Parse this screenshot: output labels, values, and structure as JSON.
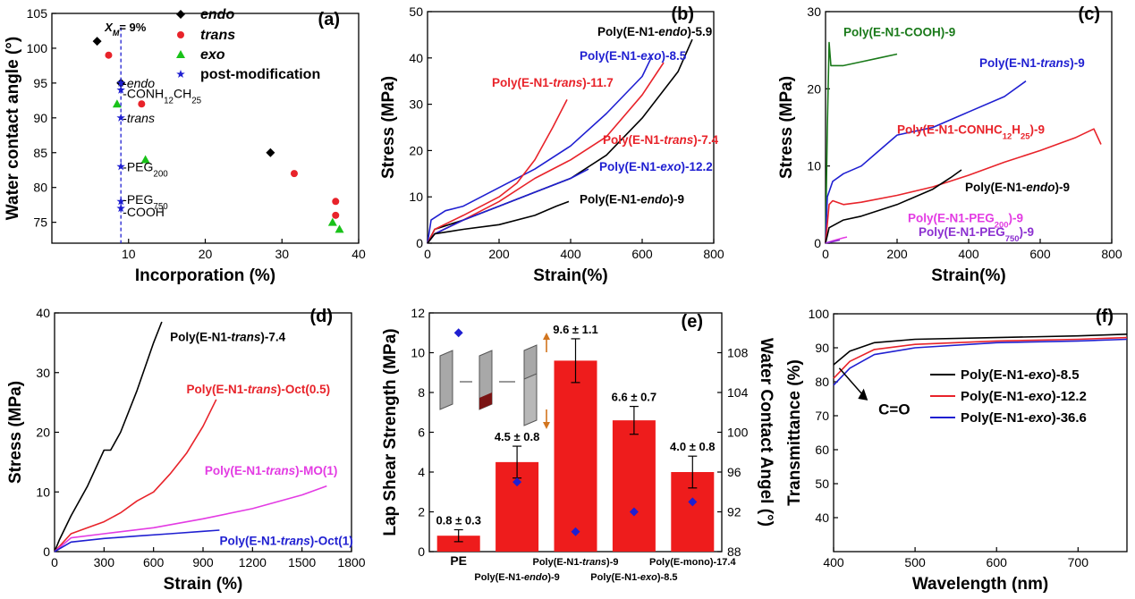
{
  "chart_data": [
    {
      "panel": "(a)",
      "type": "scatter",
      "xlabel": "Incorporation (%)",
      "ylabel": "Water contact angle (°)",
      "xlim": [
        0,
        40
      ],
      "ylim": [
        72,
        105
      ],
      "xticks": [
        10,
        20,
        30,
        40
      ],
      "yticks": [
        75,
        80,
        85,
        90,
        95,
        100,
        105
      ],
      "legend": [
        "endo",
        "trans",
        "exo",
        "post-modification"
      ],
      "series": [
        {
          "name": "endo",
          "marker": "diamond",
          "color": "#000000",
          "points": [
            [
              5.9,
              101
            ],
            [
              28.5,
              85
            ],
            [
              9.0,
              95
            ]
          ]
        },
        {
          "name": "trans",
          "marker": "circle",
          "color": "#e8232a",
          "points": [
            [
              7.4,
              99
            ],
            [
              11.7,
              92
            ],
            [
              31.6,
              82
            ],
            [
              37.0,
              78
            ],
            [
              37.0,
              76
            ]
          ]
        },
        {
          "name": "exo",
          "marker": "triangle",
          "color": "#19c219",
          "points": [
            [
              8.5,
              92
            ],
            [
              12.2,
              84
            ],
            [
              36.6,
              75
            ],
            [
              37.5,
              74
            ]
          ]
        },
        {
          "name": "post-modification",
          "marker": "star",
          "color": "#1f1fd1",
          "points": [
            [
              9,
              95
            ],
            [
              9,
              94
            ],
            [
              9,
              90
            ],
            [
              9,
              83
            ],
            [
              9,
              78
            ],
            [
              9,
              77
            ]
          ]
        }
      ],
      "vline": {
        "x": 9,
        "label_prefix": "X",
        "label_sub": "M",
        "label_suffix": "= 9%"
      },
      "annotations": [
        {
          "text": "-endo",
          "x": 9,
          "y": 95,
          "italic": true
        },
        {
          "text": "-CONH",
          "sub": "12",
          "text2": "CH",
          "sub2": "25",
          "x": 9,
          "y": 93.5
        },
        {
          "text": "-trans",
          "x": 9,
          "y": 90,
          "italic": true
        },
        {
          "text": "-PEG",
          "sub": "200",
          "x": 9,
          "y": 83
        },
        {
          "text": "-PEG",
          "sub": "750",
          "x": 9,
          "y": 78.3
        },
        {
          "text": "-COOH",
          "x": 9,
          "y": 76.5
        }
      ]
    },
    {
      "panel": "(b)",
      "type": "line",
      "xlabel": "Strain(%)",
      "ylabel": "Stress (MPa)",
      "xlim": [
        0,
        800
      ],
      "ylim": [
        0,
        50
      ],
      "xticks": [
        0,
        200,
        400,
        600,
        800
      ],
      "yticks": [
        0,
        10,
        20,
        30,
        40,
        50
      ],
      "series": [
        {
          "name": "Poly(E-N1-endo)-5.9",
          "color": "#000000",
          "x": [
            0,
            20,
            100,
            200,
            300,
            400,
            500,
            600,
            700,
            740
          ],
          "y": [
            0,
            3,
            5,
            8,
            11,
            14,
            19,
            27,
            37,
            44
          ]
        },
        {
          "name": "Poly(E-N1-exo)-8.5",
          "color": "#1f1fd1",
          "x": [
            0,
            10,
            50,
            100,
            200,
            300,
            400,
            500,
            600,
            625
          ],
          "y": [
            0,
            5,
            7,
            8,
            12,
            16,
            21,
            28,
            36,
            40
          ]
        },
        {
          "name": "Poly(E-N1-trans)-11.7",
          "color": "#e8232a",
          "x": [
            0,
            20,
            100,
            200,
            250,
            300,
            350,
            390
          ],
          "y": [
            0,
            3,
            6,
            10,
            13,
            18,
            25,
            31
          ]
        },
        {
          "name": "Poly(E-N1-trans)-7.4",
          "color": "#e8232a",
          "x": [
            0,
            20,
            100,
            200,
            300,
            400,
            500,
            600,
            660
          ],
          "y": [
            0,
            2,
            5,
            9,
            14,
            18,
            23,
            32,
            39
          ]
        },
        {
          "name": "Poly(E-N1-exo)-12.2",
          "color": "#1f1fd1",
          "x": [
            0,
            20,
            100,
            200,
            300,
            400,
            450
          ],
          "y": [
            0,
            2,
            5,
            8,
            11,
            14,
            16
          ]
        },
        {
          "name": "Poly(E-N1-endo)-9",
          "color": "#000000",
          "x": [
            0,
            20,
            100,
            200,
            300,
            360,
            395
          ],
          "y": [
            0,
            2,
            3,
            4,
            6,
            8,
            9
          ]
        }
      ],
      "labels": [
        {
          "pre": "Poly(E-N1-",
          "it": "endo",
          "post": ")-5.9",
          "color": "#000000",
          "x": 475,
          "y": 44.8
        },
        {
          "pre": "Poly(E-N1-",
          "it": "exo",
          "post": ")-8.5",
          "color": "#1f1fd1",
          "x": 425,
          "y": 39.6
        },
        {
          "pre": "Poly(E-N1-",
          "it": "trans",
          "post": ")-11.7",
          "color": "#e8232a",
          "x": 180,
          "y": 33.8
        },
        {
          "pre": "Poly(E-N1-",
          "it": "trans",
          "post": ")-7.4",
          "color": "#e8232a",
          "x": 490,
          "y": 21.4
        },
        {
          "pre": "Poly(E-N1-",
          "it": "exo",
          "post": ")-12.2",
          "color": "#1f1fd1",
          "x": 480,
          "y": 15.6
        },
        {
          "pre": "Poly(E-N1-",
          "it": "endo",
          "post": ")-9",
          "color": "#000000",
          "x": 425,
          "y": 8.6
        }
      ]
    },
    {
      "panel": "(c)",
      "type": "line",
      "xlabel": "Strain(%)",
      "ylabel": "Stress (MPa)",
      "xlim": [
        0,
        800
      ],
      "ylim": [
        0,
        30
      ],
      "xticks": [
        0,
        200,
        400,
        600,
        800
      ],
      "yticks": [
        0,
        10,
        20,
        30
      ],
      "series": [
        {
          "name": "Poly(E-N1-COOH)-9",
          "color": "#1a7a1a",
          "x": [
            0,
            5,
            10,
            15,
            20,
            50,
            100,
            150,
            200
          ],
          "y": [
            0,
            15,
            26,
            23,
            23,
            23,
            23.5,
            24,
            24.5
          ]
        },
        {
          "name": "Poly(E-N1-trans)-9",
          "color": "#1f1fd1",
          "x": [
            0,
            5,
            20,
            50,
            100,
            150,
            200,
            300,
            400,
            500,
            560
          ],
          "y": [
            0,
            6,
            8,
            9,
            10,
            12,
            14,
            15,
            17,
            19,
            21
          ]
        },
        {
          "name": "Poly(E-N1-CONHC12H25)-9",
          "color": "#e8232a",
          "x": [
            0,
            10,
            20,
            50,
            100,
            200,
            300,
            400,
            500,
            600,
            700,
            750,
            770
          ],
          "y": [
            0,
            5,
            5.5,
            5,
            5.3,
            6.2,
            7.3,
            8.8,
            10.5,
            12,
            13.7,
            14.8,
            12.8
          ]
        },
        {
          "name": "Poly(E-N1-endo)-9",
          "color": "#000000",
          "x": [
            0,
            10,
            50,
            100,
            200,
            300,
            350,
            380
          ],
          "y": [
            0,
            2,
            3,
            3.5,
            5,
            7,
            8.5,
            9.5
          ]
        },
        {
          "name": "Poly(E-N1-PEG200)-9",
          "color": "#e33be3",
          "x": [
            0,
            20,
            50,
            60
          ],
          "y": [
            0,
            0.3,
            0.7,
            0.8
          ]
        },
        {
          "name": "Poly(E-N1-PEG750)-9",
          "color": "#8b2fd0",
          "x": [
            0,
            20,
            40
          ],
          "y": [
            0,
            0.2,
            0.4
          ]
        }
      ],
      "labels": [
        {
          "pre": "Poly(E-N1-COOH)-9",
          "color": "#1a7a1a",
          "x": 50,
          "y": 26.8
        },
        {
          "pre": "Poly(E-N1-",
          "it": "trans",
          "post": ")-9",
          "color": "#1f1fd1",
          "x": 430,
          "y": 22.8
        },
        {
          "pre": "Poly(E-N1-CONHC",
          "sub": "12",
          "post": "H",
          "sub2": "25",
          "post2": ")-9",
          "color": "#e8232a",
          "x": 200,
          "y": 14.2
        },
        {
          "pre": "Poly(E-N1-",
          "it": "endo",
          "post": ")-9",
          "color": "#000000",
          "x": 390,
          "y": 6.7
        },
        {
          "pre": "Poly(E-N1-PEG",
          "sub": "200",
          "post": ")-9",
          "color": "#e33be3",
          "x": 230,
          "y": 2.7
        },
        {
          "pre": "Poly(E-N1-PEG",
          "sub": "750",
          "post": ")-9",
          "color": "#8b2fd0",
          "x": 260,
          "y": 0.9
        }
      ]
    },
    {
      "panel": "(d)",
      "type": "line",
      "xlabel": "Strain (%)",
      "ylabel": "Stress (MPa)",
      "xlim": [
        0,
        1800
      ],
      "ylim": [
        0,
        40
      ],
      "xticks": [
        0,
        300,
        600,
        900,
        1200,
        1500,
        1800
      ],
      "yticks": [
        0,
        10,
        20,
        30,
        40
      ],
      "series": [
        {
          "name": "Poly(E-N1-trans)-7.4",
          "color": "#000000",
          "x": [
            0,
            30,
            100,
            200,
            300,
            340,
            400,
            500,
            600,
            650
          ],
          "y": [
            0,
            2,
            6,
            11,
            17,
            17,
            20,
            27,
            35,
            38.5
          ]
        },
        {
          "name": "Poly(E-N1-trans)-Oct(0.5)",
          "color": "#e8232a",
          "x": [
            0,
            100,
            200,
            300,
            400,
            500,
            600,
            700,
            800,
            900,
            980
          ],
          "y": [
            0,
            3,
            4,
            5,
            6.5,
            8.5,
            10,
            13,
            16.5,
            21,
            25.5
          ]
        },
        {
          "name": "Poly(E-N1-trans)-MO(1)",
          "color": "#e33be3",
          "x": [
            0,
            100,
            300,
            600,
            900,
            1200,
            1500,
            1650
          ],
          "y": [
            0,
            2.3,
            3,
            4,
            5.5,
            7.2,
            9.5,
            11
          ]
        },
        {
          "name": "Poly(E-N1-trans)-Oct(1)",
          "color": "#1f1fd1",
          "x": [
            0,
            100,
            300,
            500,
            700,
            900,
            1000
          ],
          "y": [
            0,
            1.6,
            2.2,
            2.6,
            3,
            3.4,
            3.6
          ]
        }
      ],
      "labels": [
        {
          "pre": "Poly(E-N1-",
          "it": "trans",
          "post": ")-7.4",
          "color": "#000000",
          "x": 700,
          "y": 35.3
        },
        {
          "pre": "Poly(E-N1-",
          "it": "trans",
          "post": ")-Oct(0.5)",
          "color": "#e8232a",
          "x": 800,
          "y": 26.5
        },
        {
          "pre": "Poly(E-N1-",
          "it": "trans",
          "post": ")-MO(1)",
          "color": "#e33be3",
          "x": 910,
          "y": 12.9
        },
        {
          "pre": "Poly(E-N1-",
          "it": "trans",
          "post": ")-Oct(1)",
          "color": "#1f1fd1",
          "x": 1000,
          "y": 1.1
        }
      ]
    },
    {
      "panel": "(e)",
      "type": "bar",
      "xlabel": "",
      "ylabel": "Lap Shear Strength (MPa)",
      "y2label": "Water Contact Angel (°)",
      "ylim": [
        0,
        12
      ],
      "y2lim": [
        88,
        112
      ],
      "yticks": [
        0,
        2,
        4,
        6,
        8,
        10,
        12
      ],
      "y2ticks": [
        88,
        92,
        96,
        100,
        104,
        108
      ],
      "categories": [
        "PE",
        "Poly(E-N1-endo)-9",
        "Poly(E-N1-trans)-9",
        "Poly(E-N1-exo)-8.5",
        "Poly(E-mono)-17.4"
      ],
      "category_labels": [
        {
          "pre": "PE",
          "row": 1
        },
        {
          "pre": "Poly(E-N1-",
          "it": "endo",
          "post": ")-9",
          "row": 2
        },
        {
          "pre": "Poly(E-N1-",
          "it": "trans",
          "post": ")-9",
          "row": 1
        },
        {
          "pre": "Poly(E-N1-",
          "it": "exo",
          "post": ")-8.5",
          "row": 2
        },
        {
          "pre": "Poly(E-mono)-17.4",
          "row": 1
        }
      ],
      "values": [
        0.8,
        4.5,
        9.6,
        6.6,
        4.0
      ],
      "errors": [
        0.3,
        0.8,
        1.1,
        0.7,
        0.8
      ],
      "value_labels": [
        "0.8 ± 0.3",
        "4.5 ± 0.8",
        "9.6 ± 1.1",
        "6.6 ± 0.7",
        "4.0 ± 0.8"
      ],
      "contact_angles": [
        110,
        95,
        90,
        92,
        93
      ],
      "bar_color": "#ee1c1c",
      "point_color": "#1f1fd1"
    },
    {
      "panel": "(f)",
      "type": "line",
      "xlabel": "Wavelength (nm)",
      "ylabel": "Transmittance (%)",
      "xlim": [
        400,
        760
      ],
      "ylim": [
        30,
        100
      ],
      "xticks": [
        400,
        500,
        600,
        700
      ],
      "yticks": [
        40,
        50,
        60,
        70,
        80,
        90,
        100
      ],
      "series": [
        {
          "name": "Poly(E-N1-exo)-8.5",
          "it_word": "exo",
          "color": "#000000",
          "x": [
            400,
            420,
            450,
            500,
            600,
            700,
            760
          ],
          "y": [
            85,
            89,
            91.5,
            92.5,
            93,
            93.5,
            94
          ]
        },
        {
          "name": "Poly(E-N1-exo)-12.2",
          "it_word": "exo",
          "color": "#e8232a",
          "x": [
            400,
            420,
            450,
            500,
            600,
            700,
            760
          ],
          "y": [
            81,
            86,
            89.5,
            91,
            92,
            92.5,
            93
          ]
        },
        {
          "name": "Poly(E-N1-exo)-36.6",
          "it_word": "exo",
          "color": "#1f1fd1",
          "x": [
            400,
            420,
            450,
            500,
            600,
            700,
            760
          ],
          "y": [
            79,
            84,
            88,
            90,
            91.5,
            92,
            92.5
          ]
        }
      ],
      "annotation": {
        "text": "C=O",
        "x": 455,
        "y": 72
      }
    }
  ]
}
